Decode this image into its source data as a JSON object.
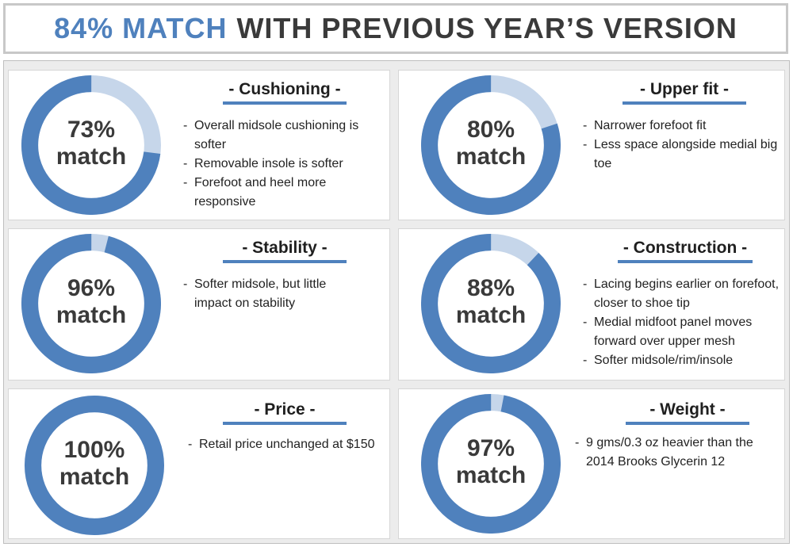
{
  "header": {
    "accent": "84% MATCH",
    "rest": "WITH PREVIOUS YEAR’S VERSION"
  },
  "colors": {
    "ring_main": "#4f81bd",
    "ring_light": "#c6d6ea",
    "accent": "#4f81bd"
  },
  "cards": [
    {
      "title": "- Cushioning -",
      "percent": 73,
      "line1": "73%",
      "line2": "match",
      "bullets": [
        "Overall midsole cushioning is softer",
        "Removable insole is softer",
        "Forefoot and heel more responsive"
      ]
    },
    {
      "title": "- Upper fit -",
      "percent": 80,
      "line1": "80%",
      "line2": "match",
      "bullets": [
        "Narrower forefoot fit",
        "Less space alongside medial big toe"
      ]
    },
    {
      "title": "- Stability -",
      "percent": 96,
      "line1": "96%",
      "line2": "match",
      "bullets": [
        "Softer midsole, but little impact on stability"
      ]
    },
    {
      "title": "- Construction -",
      "percent": 88,
      "line1": "88%",
      "line2": "match",
      "bullets": [
        "Lacing begins earlier on forefoot, closer to shoe tip",
        "Medial midfoot panel moves forward over upper mesh",
        "Softer midsole/rim/insole"
      ]
    },
    {
      "title": "- Price -",
      "percent": 100,
      "line1": "100%",
      "line2": "match",
      "bullets": [
        "Retail price unchanged at $150"
      ]
    },
    {
      "title": "- Weight -",
      "percent": 97,
      "line1": "97%",
      "line2": "match",
      "bullets": [
        "9 gms/0.3 oz heavier than the 2014 Brooks Glycerin 12"
      ]
    }
  ]
}
